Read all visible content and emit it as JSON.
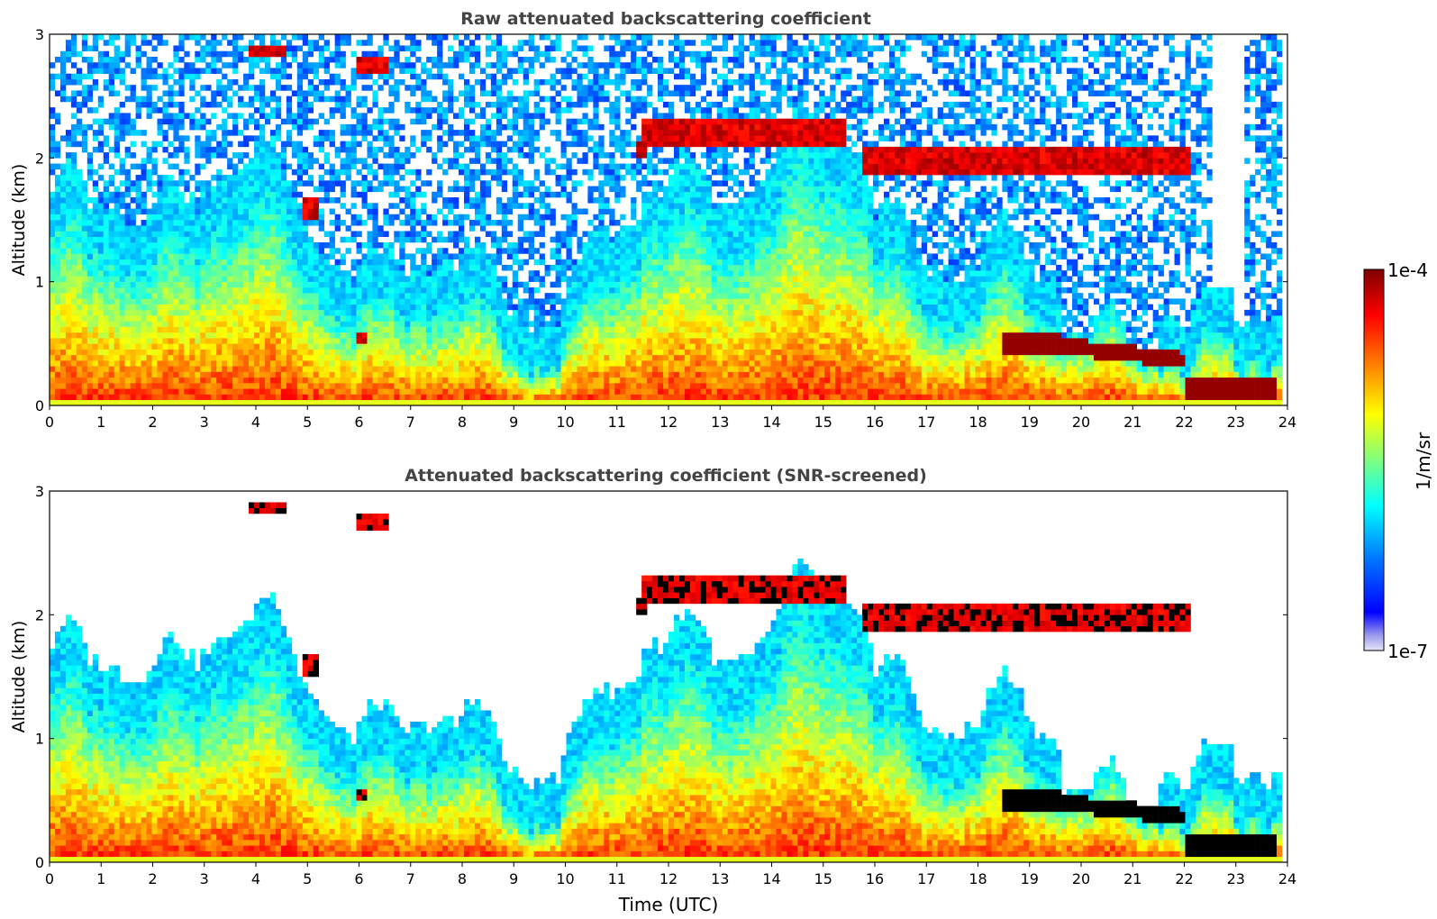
{
  "figure": {
    "type": "heatmap",
    "x_axis_label": "Time (UTC)",
    "x_ticks": [
      "0",
      "1",
      "2",
      "3",
      "4",
      "5",
      "6",
      "7",
      "8",
      "9",
      "10",
      "11",
      "12",
      "13",
      "14",
      "15",
      "16",
      "17",
      "18",
      "19",
      "20",
      "21",
      "22",
      "23",
      "24"
    ],
    "y_ticks": [
      "0",
      "1",
      "2",
      "3"
    ]
  },
  "colorbar": {
    "max_label": "1e-4",
    "min_label": "1e-7",
    "unit_label": "1/m/sr",
    "colormap": "jet",
    "colors": [
      "#00007f",
      "#0000ff",
      "#007fff",
      "#00ffff",
      "#7fff7f",
      "#ffff00",
      "#ff7f00",
      "#ff0000",
      "#7f0000"
    ]
  },
  "chart_data": [
    {
      "type": "heatmap",
      "title": "Raw attenuated backscattering coefficient",
      "xlabel": "",
      "ylabel": "Altitude (km)",
      "xlim": [
        0,
        24
      ],
      "ylim": [
        0,
        3
      ],
      "color_scale": "log",
      "clim": [
        1e-07,
        0.0001
      ],
      "unit": "1/m/sr",
      "features": [
        {
          "kind": "boundary_layer",
          "x_range": [
            0,
            24
          ],
          "alt_range": [
            0,
            1.0
          ],
          "level": "high"
        },
        {
          "kind": "aerosol_plumes",
          "x_range": [
            0,
            20
          ],
          "alt_range": [
            0,
            1.8
          ],
          "level": "medium"
        },
        {
          "kind": "cloud_layer",
          "x_range": [
            11.5,
            15.4
          ],
          "alt_range": [
            2.1,
            2.3
          ],
          "level": "very_high"
        },
        {
          "kind": "cloud_layer",
          "x_range": [
            15.8,
            22.1
          ],
          "alt_range": [
            1.85,
            2.05
          ],
          "level": "very_high"
        },
        {
          "kind": "cloud_layer",
          "x_range": [
            3.9,
            6.6
          ],
          "alt_range": [
            2.7,
            2.9
          ],
          "level": "very_high"
        },
        {
          "kind": "low_cloud",
          "x_range": [
            18.5,
            23.8
          ],
          "alt_range": [
            0.05,
            0.6
          ],
          "level": "very_high"
        },
        {
          "kind": "noise_region",
          "x_range": [
            0,
            24
          ],
          "alt_range": [
            1.0,
            3.0
          ],
          "level": "low"
        }
      ]
    },
    {
      "type": "heatmap",
      "title": "Attenuated backscattering coefficient (SNR-screened)",
      "xlabel": "Time (UTC)",
      "ylabel": "Altitude (km)",
      "xlim": [
        0,
        24
      ],
      "ylim": [
        0,
        3
      ],
      "color_scale": "log",
      "clim": [
        1e-07,
        0.0001
      ],
      "unit": "1/m/sr",
      "features": [
        {
          "kind": "boundary_layer",
          "x_range": [
            0,
            24
          ],
          "alt_range": [
            0,
            1.0
          ],
          "level": "high"
        },
        {
          "kind": "aerosol_plumes",
          "x_range": [
            0,
            20
          ],
          "alt_range": [
            0,
            1.8
          ],
          "level": "medium"
        },
        {
          "kind": "cloud_layer_saturated",
          "x_range": [
            11.5,
            15.4
          ],
          "alt_range": [
            2.1,
            2.3
          ],
          "level": "very_high"
        },
        {
          "kind": "cloud_layer_saturated",
          "x_range": [
            15.8,
            22.1
          ],
          "alt_range": [
            1.85,
            2.05
          ],
          "level": "very_high"
        },
        {
          "kind": "cloud_layer_saturated",
          "x_range": [
            3.9,
            6.6
          ],
          "alt_range": [
            2.7,
            2.9
          ],
          "level": "very_high"
        },
        {
          "kind": "low_cloud_saturated",
          "x_range": [
            18.5,
            23.8
          ],
          "alt_range": [
            0.05,
            0.6
          ],
          "level": "very_high"
        },
        {
          "kind": "screened_out",
          "x_range": [
            0,
            24
          ],
          "alt_range": [
            1.3,
            3.0
          ],
          "level": "none"
        }
      ]
    }
  ]
}
